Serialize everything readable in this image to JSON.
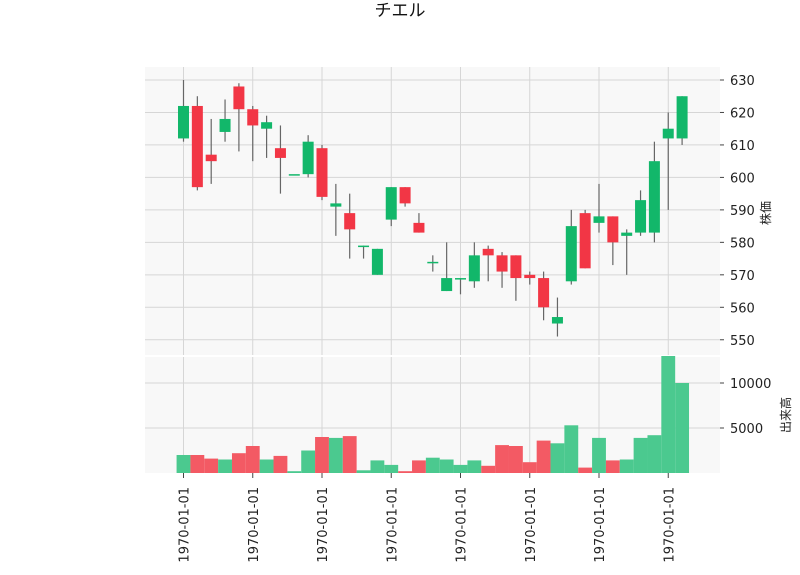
{
  "chart_data": {
    "type": "candlestick",
    "title": "チエル",
    "colors": {
      "up": "#12b76a",
      "down": "#f23645",
      "up_volume": "#4bc98f",
      "down_volume": "#f35a64",
      "wick": "#666666",
      "panel_bg": "#f8f8f8",
      "grid": "#d6d6d6"
    },
    "price_panel": {
      "ylabel": "株価",
      "ylim": [
        545,
        634
      ],
      "yticks": [
        550,
        560,
        570,
        580,
        590,
        600,
        610,
        620,
        630
      ],
      "grid": true
    },
    "volume_panel": {
      "ylabel": "出来高",
      "ylim": [
        0,
        13000
      ],
      "yticks": [
        5000,
        10000
      ],
      "grid": true
    },
    "x_tick_labels": [
      "1970-01-01",
      "1970-01-01",
      "1970-01-01",
      "1970-01-01",
      "1970-01-01",
      "1970-01-01",
      "1970-01-01",
      "1970-01-01"
    ],
    "x_tick_every": 5,
    "candles": [
      {
        "open": 612,
        "high": 630,
        "low": 611,
        "close": 622,
        "volume": 2000
      },
      {
        "open": 622,
        "high": 625,
        "low": 596,
        "close": 597,
        "volume": 2000
      },
      {
        "open": 607,
        "high": 618,
        "low": 598,
        "close": 605,
        "volume": 1600
      },
      {
        "open": 614,
        "high": 624,
        "low": 611,
        "close": 618,
        "volume": 1500
      },
      {
        "open": 628,
        "high": 629,
        "low": 608,
        "close": 621,
        "volume": 2200
      },
      {
        "open": 621,
        "high": 622,
        "low": 605,
        "close": 616,
        "volume": 3000
      },
      {
        "open": 615,
        "high": 619,
        "low": 606,
        "close": 617,
        "volume": 1500
      },
      {
        "open": 609,
        "high": 616,
        "low": 595,
        "close": 606,
        "volume": 1900
      },
      {
        "open": 601,
        "high": 601,
        "low": 601,
        "close": 601,
        "volume": 200
      },
      {
        "open": 601,
        "high": 613,
        "low": 600,
        "close": 611,
        "volume": 2500
      },
      {
        "open": 609,
        "high": 610,
        "low": 593,
        "close": 594,
        "volume": 4000
      },
      {
        "open": 591,
        "high": 598,
        "low": 582,
        "close": 592,
        "volume": 3900
      },
      {
        "open": 589,
        "high": 595,
        "low": 575,
        "close": 584,
        "volume": 4100
      },
      {
        "open": 579,
        "high": 579,
        "low": 575,
        "close": 579,
        "volume": 300
      },
      {
        "open": 570,
        "high": 578,
        "low": 570,
        "close": 578,
        "volume": 1400
      },
      {
        "open": 587,
        "high": 597,
        "low": 585,
        "close": 597,
        "volume": 900
      },
      {
        "open": 597,
        "high": 597,
        "low": 591,
        "close": 592,
        "volume": 200
      },
      {
        "open": 586,
        "high": 589,
        "low": 583,
        "close": 583,
        "volume": 1400
      },
      {
        "open": 574,
        "high": 576,
        "low": 571,
        "close": 574,
        "volume": 1700
      },
      {
        "open": 565,
        "high": 580,
        "low": 565,
        "close": 569,
        "volume": 1500
      },
      {
        "open": 569,
        "high": 569,
        "low": 564,
        "close": 569,
        "volume": 900
      },
      {
        "open": 568,
        "high": 580,
        "low": 566,
        "close": 576,
        "volume": 1400
      },
      {
        "open": 578,
        "high": 579,
        "low": 568,
        "close": 576,
        "volume": 800
      },
      {
        "open": 576,
        "high": 577,
        "low": 566,
        "close": 571,
        "volume": 3100
      },
      {
        "open": 576,
        "high": 576,
        "low": 562,
        "close": 569,
        "volume": 3000
      },
      {
        "open": 570,
        "high": 571,
        "low": 567,
        "close": 569,
        "volume": 1200
      },
      {
        "open": 569,
        "high": 571,
        "low": 556,
        "close": 560,
        "volume": 3600
      },
      {
        "open": 555,
        "high": 563,
        "low": 551,
        "close": 557,
        "volume": 3300
      },
      {
        "open": 568,
        "high": 590,
        "low": 567,
        "close": 585,
        "volume": 5300
      },
      {
        "open": 589,
        "high": 590,
        "low": 572,
        "close": 572,
        "volume": 600
      },
      {
        "open": 586,
        "high": 598,
        "low": 583,
        "close": 588,
        "volume": 3900
      },
      {
        "open": 588,
        "high": 588,
        "low": 573,
        "close": 580,
        "volume": 1400
      },
      {
        "open": 582,
        "high": 584,
        "low": 570,
        "close": 583,
        "volume": 1500
      },
      {
        "open": 583,
        "high": 596,
        "low": 582,
        "close": 593,
        "volume": 3900
      },
      {
        "open": 583,
        "high": 611,
        "low": 580,
        "close": 605,
        "volume": 4200
      },
      {
        "open": 612,
        "high": 620,
        "low": 590,
        "close": 615,
        "volume": 13000
      },
      {
        "open": 612,
        "high": 625,
        "low": 610,
        "close": 625,
        "volume": 10000
      }
    ]
  }
}
